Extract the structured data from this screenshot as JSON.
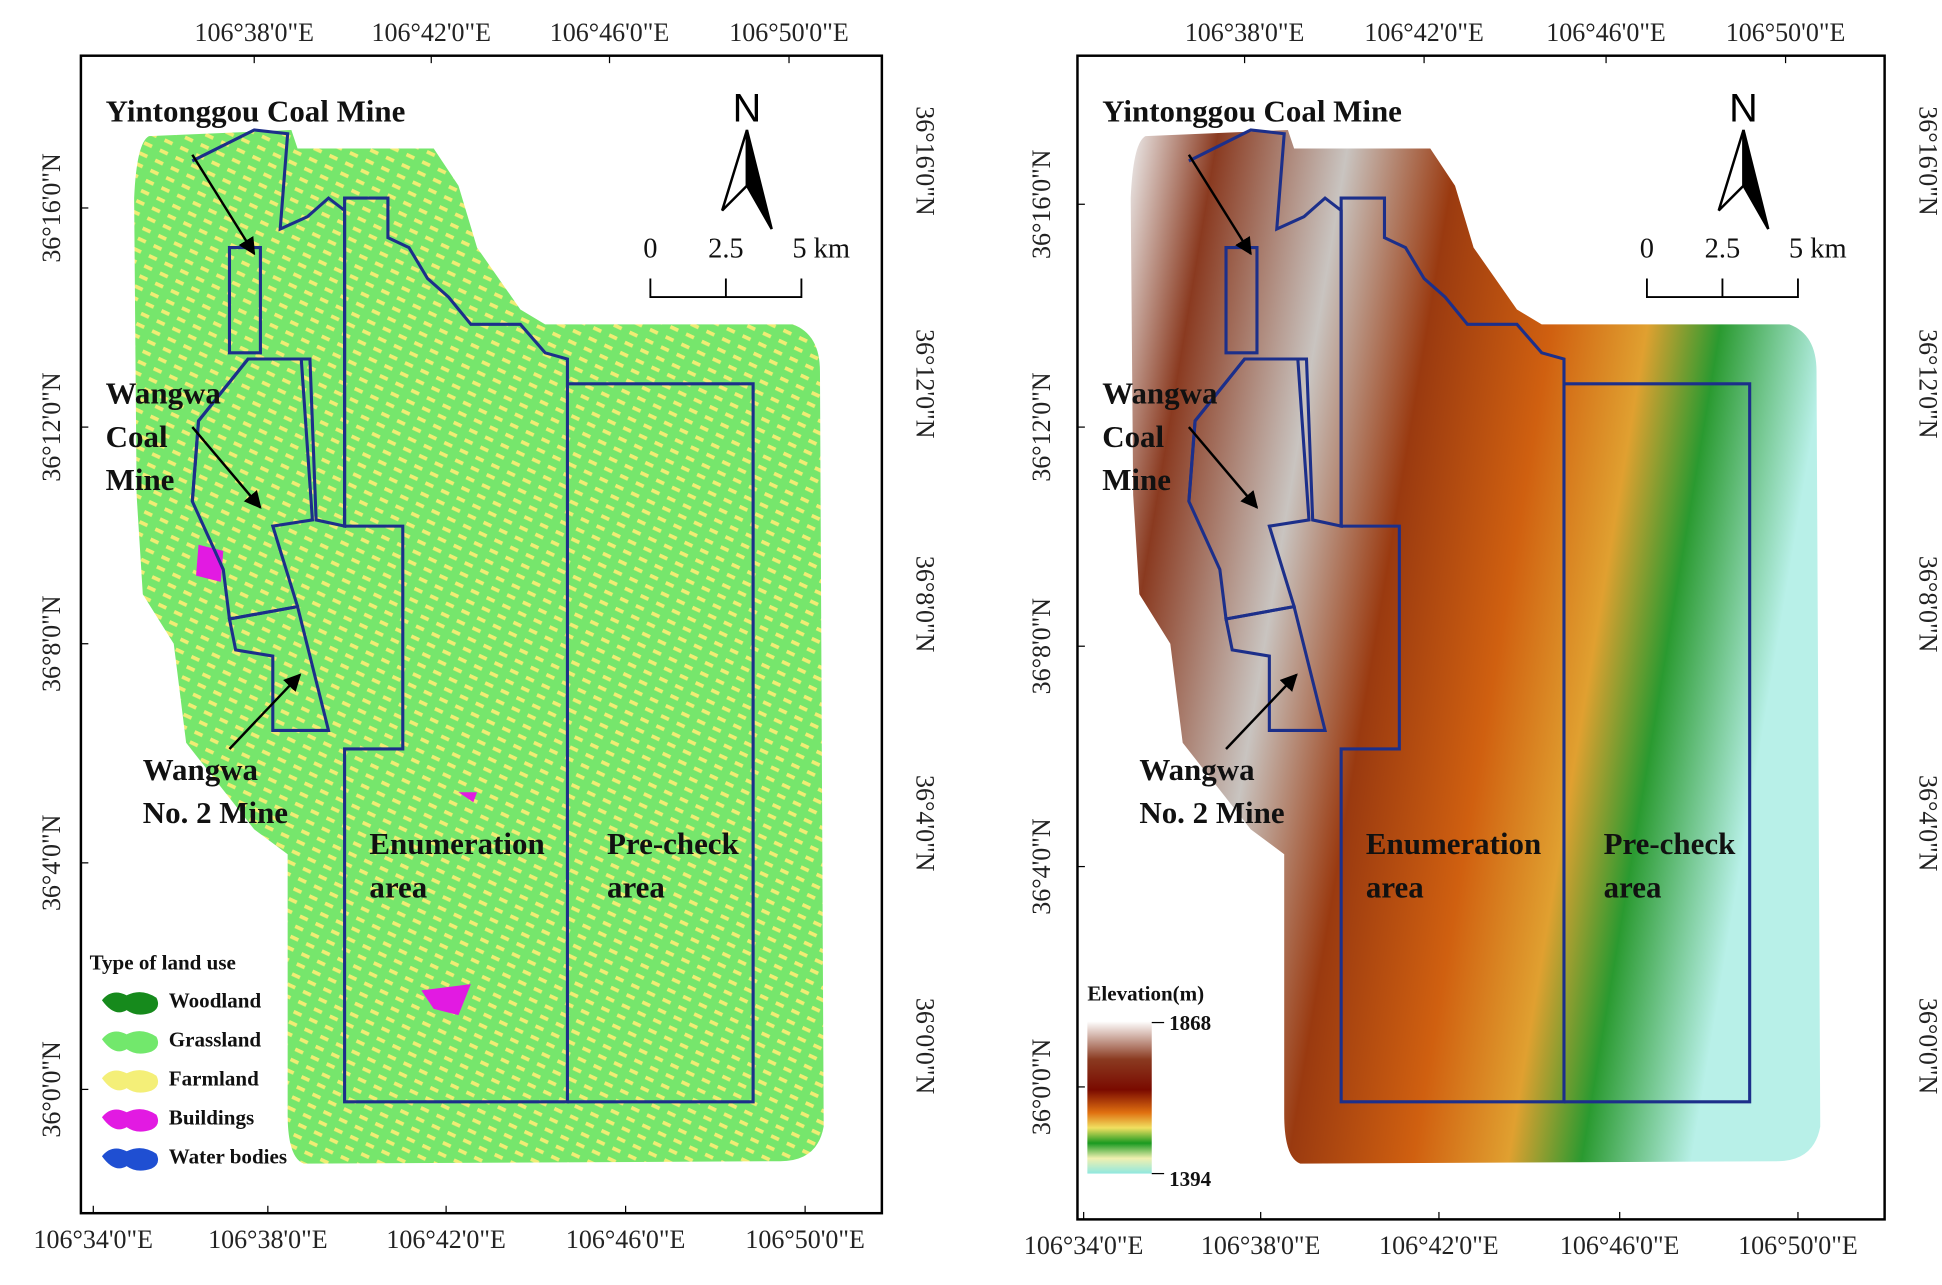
{
  "maps": [
    {
      "top_ticks": [
        "106°38'0\"E",
        "106°42'0\"E",
        "106°46'0\"E",
        "106°50'0\"E"
      ],
      "bottom_ticks": [
        "106°34'0\"E",
        "106°38'0\"E",
        "106°42'0\"E",
        "106°46'0\"E",
        "106°50'0\"E"
      ],
      "left_ticks": [
        "36°16'0\"N",
        "36°12'0\"N",
        "36°8'0\"N",
        "36°4'0\"N",
        "36°0'0\"N"
      ],
      "right_ticks": [
        "36°16'0\"N",
        "36°12'0\"N",
        "36°8'0\"N",
        "36°4'0\"N",
        "36°0'0\"N"
      ],
      "annotations": [
        {
          "lines": [
            "Yintonggou Coal Mine"
          ]
        },
        {
          "lines": [
            "Wangwa",
            "Coal",
            "Mine"
          ]
        },
        {
          "lines": [
            "Wangwa",
            "No. 2 Mine"
          ]
        },
        {
          "lines": [
            "Enumeration",
            "area"
          ]
        },
        {
          "lines": [
            "Pre-check",
            "area"
          ]
        }
      ],
      "north": "N",
      "scale_labels": [
        "0",
        "2.5",
        "5 km"
      ],
      "legend": {
        "title": "Type of land use",
        "items": [
          {
            "label": "Woodland",
            "color": "#168a1c"
          },
          {
            "label": "Grassland",
            "color": "#72e86c"
          },
          {
            "label": "Farmland",
            "color": "#f4ef78"
          },
          {
            "label": "Buildings",
            "color": "#e21ae2"
          },
          {
            "label": "Water bodies",
            "color": "#1f4fd2"
          }
        ]
      }
    },
    {
      "top_ticks": [
        "106°38'0\"E",
        "106°42'0\"E",
        "106°46'0\"E",
        "106°50'0\"E"
      ],
      "bottom_ticks": [
        "106°34'0\"E",
        "106°38'0\"E",
        "106°42'0\"E",
        "106°46'0\"E",
        "106°50'0\"E"
      ],
      "left_ticks": [
        "36°16'0\"N",
        "36°12'0\"N",
        "36°8'0\"N",
        "36°4'0\"N",
        "36°0'0\"N"
      ],
      "right_ticks": [
        "36°16'0\"N",
        "36°12'0\"N",
        "36°8'0\"N",
        "36°4'0\"N",
        "36°0'0\"N"
      ],
      "annotations": [
        {
          "lines": [
            "Yintonggou Coal Mine"
          ]
        },
        {
          "lines": [
            "Wangwa",
            "Coal",
            "Mine"
          ]
        },
        {
          "lines": [
            "Wangwa",
            "No. 2 Mine"
          ]
        },
        {
          "lines": [
            "Enumeration",
            "area"
          ]
        },
        {
          "lines": [
            "Pre-check",
            "area"
          ]
        }
      ],
      "north": "N",
      "scale_labels": [
        "0",
        "2.5",
        "5 km"
      ],
      "elevation": {
        "title": "Elevation(m)",
        "max": "1868",
        "min": "1394"
      }
    }
  ]
}
